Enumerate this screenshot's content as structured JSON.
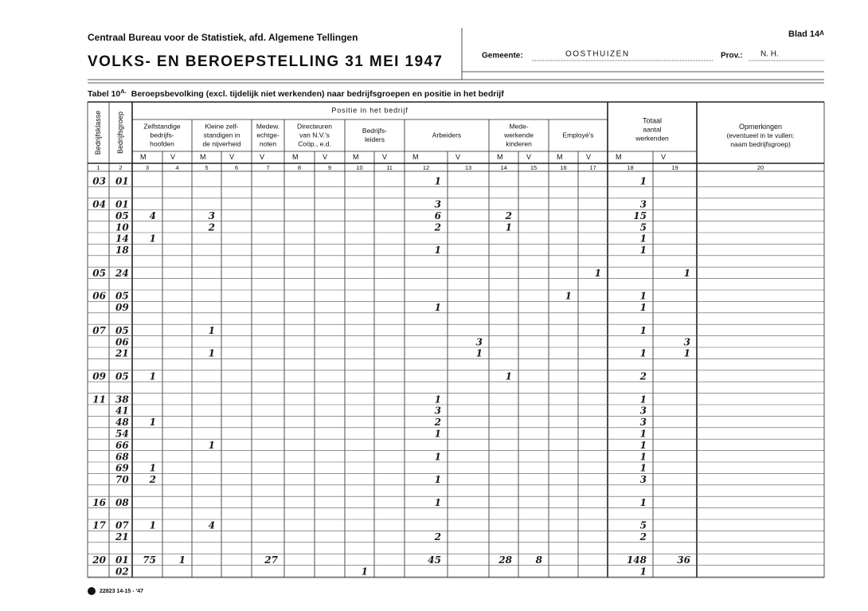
{
  "header": {
    "institution": "Centraal Bureau voor de Statistiek, afd. Algemene Tellingen",
    "title": "VOLKS- EN BEROEPSTELLING 31 MEI 1947",
    "sheet": "Blad 14",
    "sheet_suffix": "A",
    "municipality": {
      "label": "Gemeente:",
      "value": "OOSTHUIZEN"
    },
    "province": {
      "label": "Prov.:",
      "value": "N. H."
    }
  },
  "caption": {
    "label": "Tabel 10",
    "label_suffix": "A.",
    "text": "Beroepsbevolking (excl. tijdelijk niet werkenden) naar bedrijfsgroepen en positie in het bedrijf"
  },
  "table": {
    "row_headers": [
      "Bedrijfsklasse",
      "Bedrijfsgroep"
    ],
    "position_heading": "Positie in het bedrijf",
    "groups": [
      {
        "lines": [
          "Zelfstandige",
          "bedrijfs-",
          "hoofden"
        ],
        "sub": [
          "M",
          "V"
        ]
      },
      {
        "lines": [
          "Kleine zelf-",
          "standigen in",
          "de nijverheid"
        ],
        "sub": [
          "M",
          "V"
        ]
      },
      {
        "lines": [
          "Medew.",
          "echtge-",
          "noten"
        ],
        "sub": [
          "V"
        ]
      },
      {
        "lines": [
          "Directeuren",
          "van N.V.'s",
          "Coöp., e.d."
        ],
        "sub": [
          "M",
          "V"
        ]
      },
      {
        "lines": [
          "Bedrijfs-",
          "leiders"
        ],
        "sub": [
          "M",
          "V"
        ]
      },
      {
        "lines": [
          "Arbeiders"
        ],
        "sub": [
          "M",
          "V"
        ]
      },
      {
        "lines": [
          "Mede-",
          "werkende",
          "kinderen"
        ],
        "sub": [
          "M",
          "V"
        ]
      },
      {
        "lines": [
          "Employé's"
        ],
        "sub": [
          "M",
          "V"
        ]
      },
      {
        "lines": [
          "Totaal",
          "aantal",
          "werkenden"
        ],
        "sub": [
          "M",
          "V"
        ]
      },
      {
        "lines": [
          "Opmerkingen",
          "(eventueel in te vullen:",
          "naam bedrijfsgroep)"
        ],
        "sub": []
      }
    ],
    "column_numbers": [
      1,
      2,
      3,
      4,
      5,
      6,
      7,
      8,
      9,
      10,
      11,
      12,
      13,
      14,
      15,
      16,
      17,
      18,
      19,
      20
    ],
    "rows": [
      {
        "klasse": "03",
        "groep": "01",
        "cells": [
          null,
          null,
          null,
          null,
          null,
          null,
          null,
          null,
          null,
          1,
          null,
          null,
          null,
          null,
          null,
          1,
          null
        ]
      },
      null,
      {
        "klasse": "04",
        "groep": "01",
        "cells": [
          null,
          null,
          null,
          null,
          null,
          null,
          null,
          null,
          null,
          3,
          null,
          null,
          null,
          null,
          null,
          3,
          null
        ]
      },
      {
        "klasse": null,
        "groep": "05",
        "cells": [
          4,
          null,
          3,
          null,
          null,
          null,
          null,
          null,
          null,
          6,
          null,
          2,
          null,
          null,
          null,
          15,
          null
        ]
      },
      {
        "klasse": null,
        "groep": "10",
        "cells": [
          null,
          null,
          2,
          null,
          null,
          null,
          null,
          null,
          null,
          2,
          null,
          1,
          null,
          null,
          null,
          5,
          null
        ]
      },
      {
        "klasse": null,
        "groep": "14",
        "cells": [
          1,
          null,
          null,
          null,
          null,
          null,
          null,
          null,
          null,
          null,
          null,
          null,
          null,
          null,
          null,
          1,
          null
        ]
      },
      {
        "klasse": null,
        "groep": "18",
        "cells": [
          null,
          null,
          null,
          null,
          null,
          null,
          null,
          null,
          null,
          1,
          null,
          null,
          null,
          null,
          null,
          1,
          null
        ]
      },
      null,
      {
        "klasse": "05",
        "groep": "24",
        "cells": [
          null,
          null,
          null,
          null,
          null,
          null,
          null,
          null,
          null,
          null,
          null,
          null,
          null,
          null,
          1,
          null,
          1
        ]
      },
      null,
      {
        "klasse": "06",
        "groep": "05",
        "cells": [
          null,
          null,
          null,
          null,
          null,
          null,
          null,
          null,
          null,
          null,
          null,
          null,
          null,
          1,
          null,
          1,
          null
        ]
      },
      {
        "klasse": null,
        "groep": "09",
        "cells": [
          null,
          null,
          null,
          null,
          null,
          null,
          null,
          null,
          null,
          1,
          null,
          null,
          null,
          null,
          null,
          1,
          null
        ]
      },
      null,
      {
        "klasse": "07",
        "groep": "05",
        "cells": [
          null,
          null,
          1,
          null,
          null,
          null,
          null,
          null,
          null,
          null,
          null,
          null,
          null,
          null,
          null,
          1,
          null
        ]
      },
      {
        "klasse": null,
        "groep": "06",
        "cells": [
          null,
          null,
          null,
          null,
          null,
          null,
          null,
          null,
          null,
          null,
          3,
          null,
          null,
          null,
          null,
          null,
          3
        ]
      },
      {
        "klasse": null,
        "groep": "21",
        "cells": [
          null,
          null,
          1,
          null,
          null,
          null,
          null,
          null,
          null,
          null,
          1,
          null,
          null,
          null,
          null,
          1,
          1
        ]
      },
      null,
      {
        "klasse": "09",
        "groep": "05",
        "cells": [
          1,
          null,
          null,
          null,
          null,
          null,
          null,
          null,
          null,
          null,
          null,
          1,
          null,
          null,
          null,
          2,
          null
        ]
      },
      null,
      {
        "klasse": "11",
        "groep": "38",
        "cells": [
          null,
          null,
          null,
          null,
          null,
          null,
          null,
          null,
          null,
          1,
          null,
          null,
          null,
          null,
          null,
          1,
          null
        ]
      },
      {
        "klasse": null,
        "groep": "41",
        "cells": [
          null,
          null,
          null,
          null,
          null,
          null,
          null,
          null,
          null,
          3,
          null,
          null,
          null,
          null,
          null,
          3,
          null
        ]
      },
      {
        "klasse": null,
        "groep": "48",
        "cells": [
          1,
          null,
          null,
          null,
          null,
          null,
          null,
          null,
          null,
          2,
          null,
          null,
          null,
          null,
          null,
          3,
          null
        ]
      },
      {
        "klasse": null,
        "groep": "54",
        "cells": [
          null,
          null,
          null,
          null,
          null,
          null,
          null,
          null,
          null,
          1,
          null,
          null,
          null,
          null,
          null,
          1,
          null
        ]
      },
      {
        "klasse": null,
        "groep": "66",
        "cells": [
          null,
          null,
          1,
          null,
          null,
          null,
          null,
          null,
          null,
          null,
          null,
          null,
          null,
          null,
          null,
          1,
          null
        ]
      },
      {
        "klasse": null,
        "groep": "68",
        "cells": [
          null,
          null,
          null,
          null,
          null,
          null,
          null,
          null,
          null,
          1,
          null,
          null,
          null,
          null,
          null,
          1,
          null
        ]
      },
      {
        "klasse": null,
        "groep": "69",
        "cells": [
          1,
          null,
          null,
          null,
          null,
          null,
          null,
          null,
          null,
          null,
          null,
          null,
          null,
          null,
          null,
          1,
          null
        ]
      },
      {
        "klasse": null,
        "groep": "70",
        "cells": [
          2,
          null,
          null,
          null,
          null,
          null,
          null,
          null,
          null,
          1,
          null,
          null,
          null,
          null,
          null,
          3,
          null
        ]
      },
      null,
      {
        "klasse": "16",
        "groep": "08",
        "cells": [
          null,
          null,
          null,
          null,
          null,
          null,
          null,
          null,
          null,
          1,
          null,
          null,
          null,
          null,
          null,
          1,
          null
        ]
      },
      null,
      {
        "klasse": "17",
        "groep": "07",
        "cells": [
          1,
          null,
          4,
          null,
          null,
          null,
          null,
          null,
          null,
          null,
          null,
          null,
          null,
          null,
          null,
          5,
          null
        ]
      },
      {
        "klasse": null,
        "groep": "21",
        "cells": [
          null,
          null,
          null,
          null,
          null,
          null,
          null,
          null,
          null,
          2,
          null,
          null,
          null,
          null,
          null,
          2,
          null
        ]
      },
      null,
      {
        "klasse": "20",
        "groep": "01",
        "cells": [
          75,
          1,
          null,
          null,
          27,
          null,
          null,
          null,
          null,
          45,
          null,
          28,
          8,
          null,
          null,
          148,
          36
        ]
      },
      {
        "klasse": null,
        "groep": "02",
        "cells": [
          null,
          null,
          null,
          null,
          null,
          null,
          null,
          1,
          null,
          null,
          null,
          null,
          null,
          null,
          null,
          1,
          null
        ]
      }
    ]
  },
  "footer": "22823 14-15 - '47"
}
